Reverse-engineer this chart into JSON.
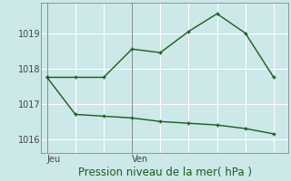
{
  "background_color": "#cce8e8",
  "grid_color": "#b8d8d8",
  "line_color": "#1a5c1a",
  "line1_x": [
    0,
    1,
    2,
    3,
    4,
    5,
    6,
    7,
    8
  ],
  "line1_y": [
    1017.75,
    1017.75,
    1017.75,
    1018.55,
    1018.45,
    1019.05,
    1019.55,
    1019.0,
    1017.75
  ],
  "line2_x": [
    0,
    1,
    2,
    3,
    4,
    5,
    6,
    7,
    8
  ],
  "line2_y": [
    1017.75,
    1016.7,
    1016.65,
    1016.6,
    1016.5,
    1016.45,
    1016.4,
    1016.3,
    1016.15
  ],
  "yticks": [
    1016,
    1017,
    1018,
    1019
  ],
  "ylim": [
    1015.6,
    1019.85
  ],
  "xlim": [
    -0.2,
    8.5
  ],
  "jeu_x": 0.0,
  "ven_x": 3.0,
  "jeu_vline": 0.0,
  "ven_vline": 3.0,
  "xlabel": "Pression niveau de la mer( hPa )",
  "label_fontsize": 8.5,
  "tick_fontsize": 7
}
